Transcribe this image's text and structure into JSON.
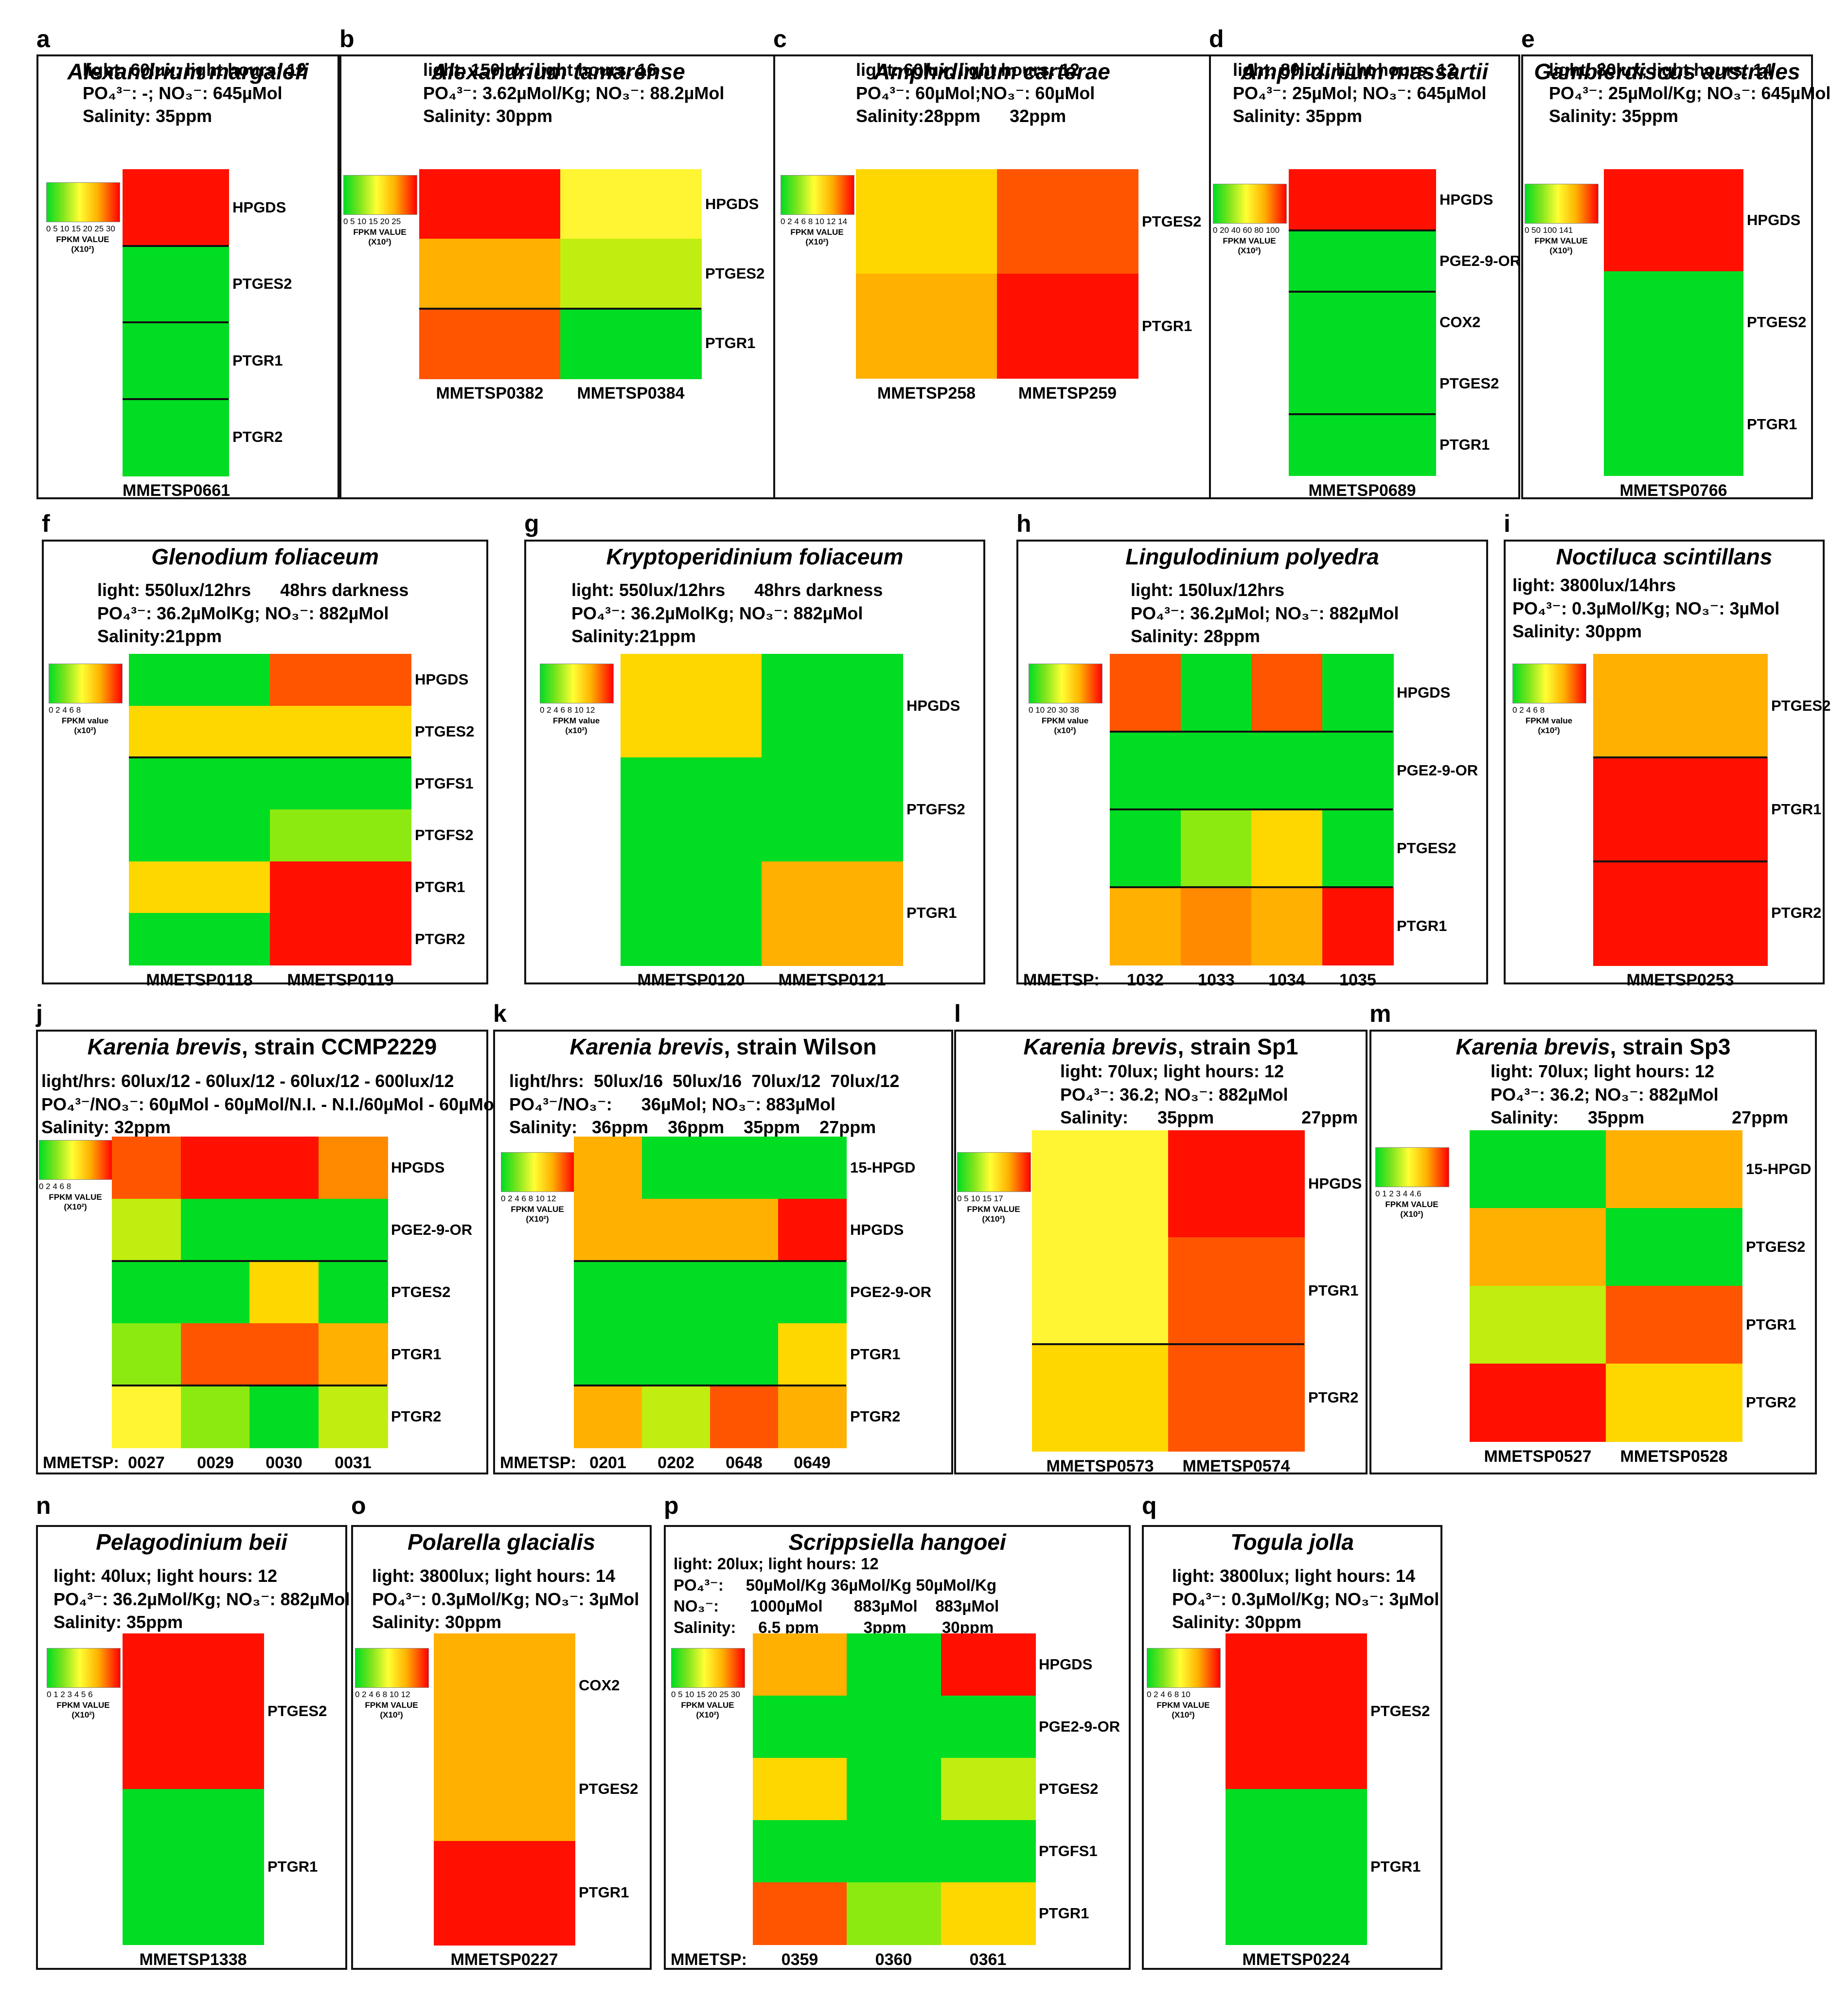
{
  "figure": {
    "type": "heatmap",
    "gene_label_prefix": "FPKM heatmaps of prostaglandin pathway genes"
  },
  "colors": {
    "green": "#00dd22",
    "yellowgreen": "#c0ee10",
    "lime": "#8cea10",
    "yellow": "#fff533",
    "amber": "#ffd700",
    "orange": "#ffb000",
    "darkorange": "#ff8a00",
    "redorange": "#ff5500",
    "red": "#ff1000"
  },
  "chart_data": [
    {
      "id": "a",
      "type": "heatmap",
      "title": "Alexandrium margalefi",
      "title_norm": "",
      "conditions": [
        "light: 60lux; light hours: 12",
        "PO₄³⁻: -; NO₃⁻: 645µMol",
        "Salinity: 35ppm"
      ],
      "legend": {
        "ticks": "0 5 10 15 20 25 30",
        "caption": "FPKM VALUE\n(X10²)"
      },
      "genes": [
        "HPGDS",
        "PTGES2",
        "PTGR1",
        "PTGR2"
      ],
      "samples": [
        "MMETSP0661"
      ],
      "cells": [
        [
          "red"
        ],
        [
          "green"
        ],
        [
          "green"
        ],
        [
          "green"
        ]
      ],
      "lines": [
        1,
        2,
        3
      ]
    },
    {
      "id": "b",
      "type": "heatmap",
      "title": "Alexandrium tamarense",
      "title_norm": "",
      "conditions": [
        "light: 150lux; light hours: 16",
        "PO₄³⁻: 3.62µMol/Kg; NO₃⁻: 88.2µMol",
        "Salinity: 30ppm"
      ],
      "legend": {
        "ticks": "0 5 10 15 20 25",
        "caption": "FPKM VALUE\n(X10²)"
      },
      "genes": [
        "HPGDS",
        "PTGES2",
        "PTGR1"
      ],
      "samples": [
        "MMETSP0382",
        "MMETSP0384"
      ],
      "cells": [
        [
          "red",
          "yellow"
        ],
        [
          "orange",
          "yellowgreen"
        ],
        [
          "redorange",
          "green"
        ]
      ],
      "lines": [
        2
      ]
    },
    {
      "id": "c",
      "type": "heatmap",
      "title": "Amphidinium carterae",
      "title_norm": "",
      "conditions": [
        "light: 60lux; light hours: 12",
        "PO₄³⁻: 60µMol;NO₃⁻: 60µMol",
        "Salinity:28ppm      32ppm"
      ],
      "legend": {
        "ticks": "0 2 4 6 8 10 12 14",
        "caption": "FPKM VALUE\n(X10²)"
      },
      "genes": [
        "PTGES2",
        "PTGR1"
      ],
      "samples": [
        "MMETSP258",
        "MMETSP259"
      ],
      "cells": [
        [
          "amber",
          "redorange"
        ],
        [
          "orange",
          "red"
        ]
      ],
      "lines": []
    },
    {
      "id": "d",
      "type": "heatmap",
      "title": "Amphidinium massartii",
      "title_norm": "",
      "conditions": [
        "light: 80lux; light hours: 12",
        "PO₄³⁻: 25µMol; NO₃⁻: 645µMol",
        "Salinity: 35ppm"
      ],
      "legend": {
        "ticks": "0 20 40 60 80 100",
        "caption": "FPKM VALUE\n(X10²)"
      },
      "genes": [
        "HPGDS",
        "PGE2-9-OR",
        "COX2",
        "PTGES2",
        "PTGR1"
      ],
      "samples": [
        "MMETSP0689"
      ],
      "cells": [
        [
          "red"
        ],
        [
          "green"
        ],
        [
          "green"
        ],
        [
          "green"
        ],
        [
          "green"
        ]
      ],
      "lines": [
        1,
        2,
        4
      ]
    },
    {
      "id": "e",
      "type": "heatmap",
      "title": "Gambierdiscus australes",
      "title_norm": "",
      "conditions": [
        "light: 80lux; light hours: 14",
        "PO₄³⁻: 25µMol/Kg; NO₃⁻: 645µMol",
        "Salinity: 35ppm"
      ],
      "legend": {
        "ticks": "0 50 100 141",
        "caption": "FPKM VALUE\n(X10²)"
      },
      "genes": [
        "HPGDS",
        "PTGES2",
        "PTGR1"
      ],
      "samples": [
        "MMETSP0766"
      ],
      "cells": [
        [
          "red"
        ],
        [
          "green"
        ],
        [
          "green"
        ]
      ],
      "lines": []
    },
    {
      "id": "f",
      "type": "heatmap",
      "title": "Glenodium foliaceum",
      "title_norm": "",
      "conditions": [
        "light: 550lux/12hrs      48hrs darkness",
        "PO₄³⁻: 36.2µMolKg; NO₃⁻: 882µMol",
        "Salinity:21ppm"
      ],
      "legend": {
        "ticks": "0  2  4  6  8",
        "caption": "FPKM value\n(x10²)"
      },
      "genes": [
        "HPGDS",
        "PTGES2",
        "PTGFS1",
        "PTGFS2",
        "PTGR1",
        "PTGR2"
      ],
      "samples": [
        "MMETSP0118",
        "MMETSP0119"
      ],
      "cells": [
        [
          "green",
          "redorange"
        ],
        [
          "amber",
          "amber"
        ],
        [
          "green",
          "green"
        ],
        [
          "green",
          "lime"
        ],
        [
          "amber",
          "red"
        ],
        [
          "green",
          "red"
        ]
      ],
      "lines": [
        2
      ]
    },
    {
      "id": "g",
      "type": "heatmap",
      "title": "Kryptoperidinium foliaceum",
      "title_norm": "",
      "conditions": [
        "light: 550lux/12hrs      48hrs darkness",
        "PO₄³⁻: 36.2µMolKg; NO₃⁻: 882µMol",
        "Salinity:21ppm"
      ],
      "legend": {
        "ticks": "0 2 4 6 8 10 12",
        "caption": "FPKM value\n(x10²)"
      },
      "genes": [
        "HPGDS",
        "PTGFS2",
        "PTGR1"
      ],
      "samples": [
        "MMETSP0120",
        "MMETSP0121"
      ],
      "cells": [
        [
          "amber",
          "green"
        ],
        [
          "green",
          "green"
        ],
        [
          "green",
          "orange"
        ]
      ],
      "lines": []
    },
    {
      "id": "h",
      "type": "heatmap",
      "title": "Lingulodinium polyedra",
      "title_norm": "",
      "conditions": [
        "light: 150lux/12hrs",
        "PO₄³⁻: 36.2µMol; NO₃⁻: 882µMol",
        "Salinity: 28ppm"
      ],
      "legend": {
        "ticks": "0  10  20  30  38",
        "caption": "FPKM value\n(x10²)"
      },
      "genes": [
        "HPGDS",
        "PGE2-9-OR",
        "PTGES2",
        "PTGR1"
      ],
      "samples": [
        "1032",
        "1033",
        "1034",
        "1035"
      ],
      "sample_prefix": "MMETSP:",
      "cells": [
        [
          "redorange",
          "green",
          "redorange",
          "green"
        ],
        [
          "green",
          "green",
          "green",
          "green"
        ],
        [
          "green",
          "lime",
          "amber",
          "green"
        ],
        [
          "orange",
          "darkorange",
          "orange",
          "red"
        ]
      ],
      "lines": [
        1,
        2,
        3
      ]
    },
    {
      "id": "i",
      "type": "heatmap",
      "title": "Noctiluca scintillans",
      "title_norm": "",
      "conditions": [
        "light: 3800lux/14hrs",
        "PO₄³⁻: 0.3µMol/Kg; NO₃⁻: 3µMol",
        "Salinity: 30ppm"
      ],
      "legend": {
        "ticks": "0  2  4  6  8",
        "caption": "FPKM value\n(x10²)"
      },
      "genes": [
        "PTGES2",
        "PTGR1",
        "PTGR2"
      ],
      "samples": [
        "MMETSP0253"
      ],
      "cells": [
        [
          "orange"
        ],
        [
          "red"
        ],
        [
          "red"
        ]
      ],
      "lines": [
        1,
        2
      ]
    },
    {
      "id": "j",
      "type": "heatmap",
      "title": "Karenia brevis",
      "title_norm": ", strain CCMP2229",
      "conditions": [
        "light/hrs: 60lux/12 - 60lux/12 - 60lux/12 - 600lux/12",
        "PO₄³⁻/NO₃⁻: 60µMol - 60µMol/N.I. - N.I./60µMol - 60µMol",
        "Salinity: 32ppm"
      ],
      "legend": {
        "ticks": "0  2  4  6  8",
        "caption": "FPKM VALUE\n(X10²)"
      },
      "genes": [
        "HPGDS",
        "PGE2-9-OR",
        "PTGES2",
        "PTGR1",
        "PTGR2"
      ],
      "samples": [
        "0027",
        "0029",
        "0030",
        "0031"
      ],
      "sample_prefix": "MMETSP:",
      "cells": [
        [
          "redorange",
          "red",
          "red",
          "darkorange"
        ],
        [
          "yellowgreen",
          "green",
          "green",
          "green"
        ],
        [
          "green",
          "green",
          "amber",
          "green"
        ],
        [
          "lime",
          "redorange",
          "redorange",
          "orange"
        ],
        [
          "yellow",
          "lime",
          "green",
          "yellowgreen"
        ]
      ],
      "lines": [
        2,
        4
      ]
    },
    {
      "id": "k",
      "type": "heatmap",
      "title": "Karenia brevis",
      "title_norm": ", strain Wilson",
      "conditions": [
        "light/hrs:  50lux/16  50lux/16  70lux/12  70lux/12",
        "PO₄³⁻/NO₃⁻:      36µMol; NO₃⁻: 883µMol",
        "Salinity:   36ppm    36ppm    35ppm    27ppm"
      ],
      "legend": {
        "ticks": "0 2 4 6 8 10 12",
        "caption": "FPKM VALUE\n(X10²)"
      },
      "genes": [
        "15-HPGD",
        "HPGDS",
        "PGE2-9-OR",
        "PTGR1",
        "PTGR2"
      ],
      "samples": [
        "0201",
        "0202",
        "0648",
        "0649"
      ],
      "sample_prefix": "MMETSP:",
      "cells": [
        [
          "orange",
          "green",
          "green",
          "green"
        ],
        [
          "orange",
          "orange",
          "orange",
          "red"
        ],
        [
          "green",
          "green",
          "green",
          "green"
        ],
        [
          "green",
          "green",
          "green",
          "amber"
        ],
        [
          "orange",
          "yellowgreen",
          "redorange",
          "orange"
        ]
      ],
      "lines": [
        2,
        4
      ]
    },
    {
      "id": "l",
      "type": "heatmap",
      "title": "Karenia brevis",
      "title_norm": ", strain Sp1",
      "conditions": [
        "light: 70lux; light hours: 12",
        "PO₄³⁻: 36.2; NO₃⁻: 882µMol",
        "Salinity:      35ppm                  27ppm"
      ],
      "legend": {
        "ticks": "0   5   10  15 17",
        "caption": "FPKM VALUE\n(X10²)"
      },
      "genes": [
        "HPGDS",
        "PTGR1",
        "PTGR2"
      ],
      "samples": [
        "MMETSP0573",
        "MMETSP0574"
      ],
      "cells": [
        [
          "yellow",
          "red"
        ],
        [
          "yellow",
          "redorange"
        ],
        [
          "amber",
          "redorange"
        ]
      ],
      "lines": [
        2
      ]
    },
    {
      "id": "m",
      "type": "heatmap",
      "title": "Karenia brevis",
      "title_norm": ", strain Sp3",
      "conditions": [
        "light: 70lux; light hours: 12",
        "PO₄³⁻: 36.2; NO₃⁻: 882µMol",
        "Salinity:      35ppm                  27ppm"
      ],
      "legend": {
        "ticks": "0  1  2  3  4 4.6",
        "caption": "FPKM VALUE\n(X10²)"
      },
      "genes": [
        "15-HPGD",
        "PTGES2",
        "PTGR1",
        "PTGR2"
      ],
      "samples": [
        "MMETSP0527",
        "MMETSP0528"
      ],
      "cells": [
        [
          "green",
          "orange"
        ],
        [
          "orange",
          "green"
        ],
        [
          "yellowgreen",
          "redorange"
        ],
        [
          "red",
          "amber"
        ]
      ],
      "lines": []
    },
    {
      "id": "n",
      "type": "heatmap",
      "title": "Pelagodinium beii",
      "title_norm": "",
      "conditions": [
        "light: 40lux; light hours: 12",
        "PO₄³⁻: 36.2µMol/Kg; NO₃⁻: 882µMol",
        "Salinity: 35ppm"
      ],
      "legend": {
        "ticks": "0 1 2 3 4 5 6",
        "caption": "FPKM VALUE\n(X10²)"
      },
      "genes": [
        "PTGES2",
        "PTGR1"
      ],
      "samples": [
        "MMETSP1338"
      ],
      "cells": [
        [
          "red"
        ],
        [
          "green"
        ]
      ],
      "lines": []
    },
    {
      "id": "o",
      "type": "heatmap",
      "title": "Polarella glacialis",
      "title_norm": "",
      "conditions": [
        "light: 3800lux; light hours: 14",
        "PO₄³⁻: 0.3µMol/Kg; NO₃⁻: 3µMol",
        "Salinity: 30ppm"
      ],
      "legend": {
        "ticks": "0 2 4 6 8 10 12",
        "caption": "FPKM VALUE\n(X10²)"
      },
      "genes": [
        "COX2",
        "PTGES2",
        "PTGR1"
      ],
      "samples": [
        "MMETSP0227"
      ],
      "cells": [
        [
          "orange"
        ],
        [
          "orange"
        ],
        [
          "red"
        ]
      ],
      "lines": []
    },
    {
      "id": "p",
      "type": "heatmap",
      "title": "Scrippsiella hangoei",
      "title_norm": "",
      "conditions": [
        "light: 20lux; light hours: 12",
        "PO₄³⁻:     50µMol/Kg 36µMol/Kg 50µMol/Kg",
        "NO₃⁻:       1000µMol       883µMol    883µMol",
        "Salinity:     6.5 ppm          3ppm        30ppm"
      ],
      "legend": {
        "ticks": "0  5 10 15 20 25 30",
        "caption": "FPKM VALUE\n(X10²)"
      },
      "genes": [
        "HPGDS",
        "PGE2-9-OR",
        "PTGES2",
        "PTGFS1",
        "PTGR1"
      ],
      "samples": [
        "0359",
        "0360",
        "0361"
      ],
      "sample_prefix": "MMETSP:",
      "cells": [
        [
          "orange",
          "green",
          "red"
        ],
        [
          "green",
          "green",
          "green"
        ],
        [
          "amber",
          "green",
          "yellowgreen"
        ],
        [
          "green",
          "green",
          "green"
        ],
        [
          "redorange",
          "lime",
          "amber"
        ]
      ],
      "lines": []
    },
    {
      "id": "q",
      "type": "heatmap",
      "title": "Togula jolla",
      "title_norm": "",
      "conditions": [
        "light: 3800lux; light hours: 14",
        "PO₄³⁻: 0.3µMol/Kg; NO₃⁻: 3µMol",
        "Salinity: 30ppm"
      ],
      "legend": {
        "ticks": "0  2  4  6  8  10",
        "caption": "FPKM VALUE\n(X10²)"
      },
      "genes": [
        "PTGES2",
        "PTGR1"
      ],
      "samples": [
        "MMETSP0224"
      ],
      "cells": [
        [
          "red"
        ],
        [
          "green"
        ]
      ],
      "lines": []
    }
  ]
}
